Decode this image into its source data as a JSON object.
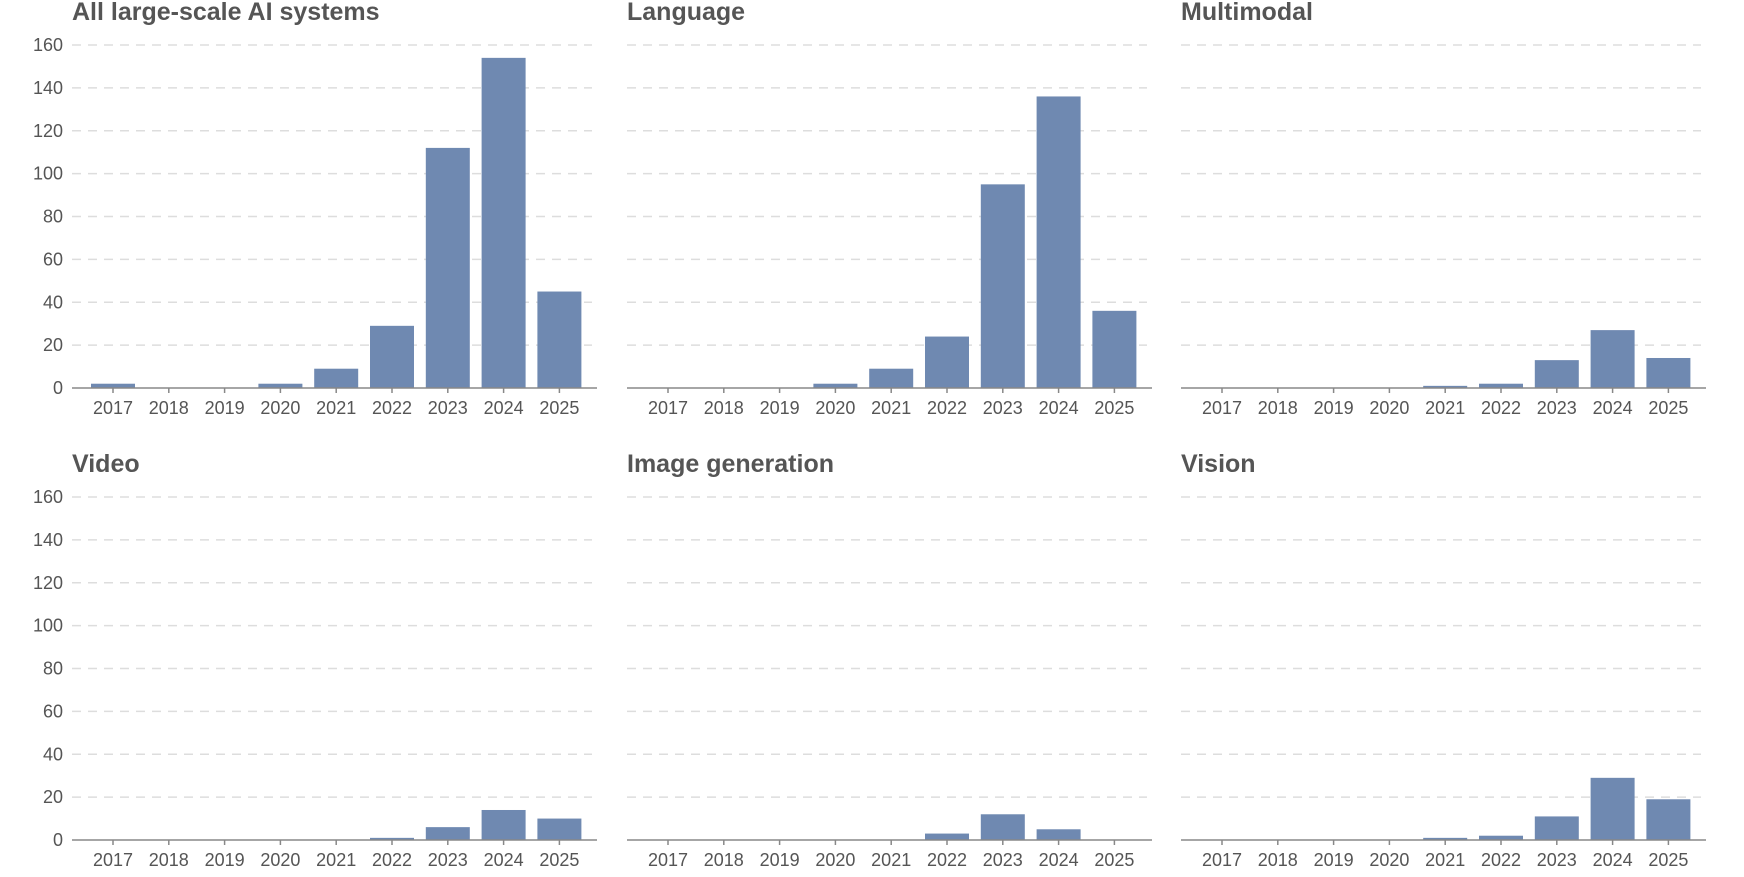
{
  "colors": {
    "bar": "#6f89b1",
    "grid": "#dddddd",
    "axis": "#888888",
    "tick_text": "#555555",
    "title_text": "#555555"
  },
  "chart_data": [
    {
      "type": "bar",
      "title": "All large-scale AI systems",
      "categories": [
        "2017",
        "2018",
        "2019",
        "2020",
        "2021",
        "2022",
        "2023",
        "2024",
        "2025"
      ],
      "values": [
        2,
        0,
        0,
        2,
        9,
        29,
        112,
        154,
        45
      ],
      "ylim": [
        0,
        160
      ],
      "yticks": [
        0,
        20,
        40,
        60,
        80,
        100,
        120,
        140,
        160
      ],
      "show_y_tick_labels": true,
      "grid": true
    },
    {
      "type": "bar",
      "title": "Language",
      "categories": [
        "2017",
        "2018",
        "2019",
        "2020",
        "2021",
        "2022",
        "2023",
        "2024",
        "2025"
      ],
      "values": [
        0,
        0,
        0,
        2,
        9,
        24,
        95,
        136,
        36
      ],
      "ylim": [
        0,
        160
      ],
      "yticks": [
        0,
        20,
        40,
        60,
        80,
        100,
        120,
        140,
        160
      ],
      "show_y_tick_labels": false,
      "grid": true
    },
    {
      "type": "bar",
      "title": "Multimodal",
      "categories": [
        "2017",
        "2018",
        "2019",
        "2020",
        "2021",
        "2022",
        "2023",
        "2024",
        "2025"
      ],
      "values": [
        0,
        0,
        0,
        0,
        1,
        2,
        13,
        27,
        14
      ],
      "ylim": [
        0,
        160
      ],
      "yticks": [
        0,
        20,
        40,
        60,
        80,
        100,
        120,
        140,
        160
      ],
      "show_y_tick_labels": false,
      "grid": true
    },
    {
      "type": "bar",
      "title": "Video",
      "categories": [
        "2017",
        "2018",
        "2019",
        "2020",
        "2021",
        "2022",
        "2023",
        "2024",
        "2025"
      ],
      "values": [
        0,
        0,
        0,
        0,
        0,
        1,
        6,
        14,
        10
      ],
      "ylim": [
        0,
        160
      ],
      "yticks": [
        0,
        20,
        40,
        60,
        80,
        100,
        120,
        140,
        160
      ],
      "show_y_tick_labels": true,
      "grid": true
    },
    {
      "type": "bar",
      "title": "Image generation",
      "categories": [
        "2017",
        "2018",
        "2019",
        "2020",
        "2021",
        "2022",
        "2023",
        "2024",
        "2025"
      ],
      "values": [
        0,
        0,
        0,
        0,
        0,
        3,
        12,
        5,
        0
      ],
      "ylim": [
        0,
        160
      ],
      "yticks": [
        0,
        20,
        40,
        60,
        80,
        100,
        120,
        140,
        160
      ],
      "show_y_tick_labels": false,
      "grid": true
    },
    {
      "type": "bar",
      "title": "Vision",
      "categories": [
        "2017",
        "2018",
        "2019",
        "2020",
        "2021",
        "2022",
        "2023",
        "2024",
        "2025"
      ],
      "values": [
        0,
        0,
        0,
        0,
        1,
        2,
        11,
        29,
        19
      ],
      "ylim": [
        0,
        160
      ],
      "yticks": [
        0,
        20,
        40,
        60,
        80,
        100,
        120,
        140,
        160
      ],
      "show_y_tick_labels": false,
      "grid": true
    }
  ]
}
